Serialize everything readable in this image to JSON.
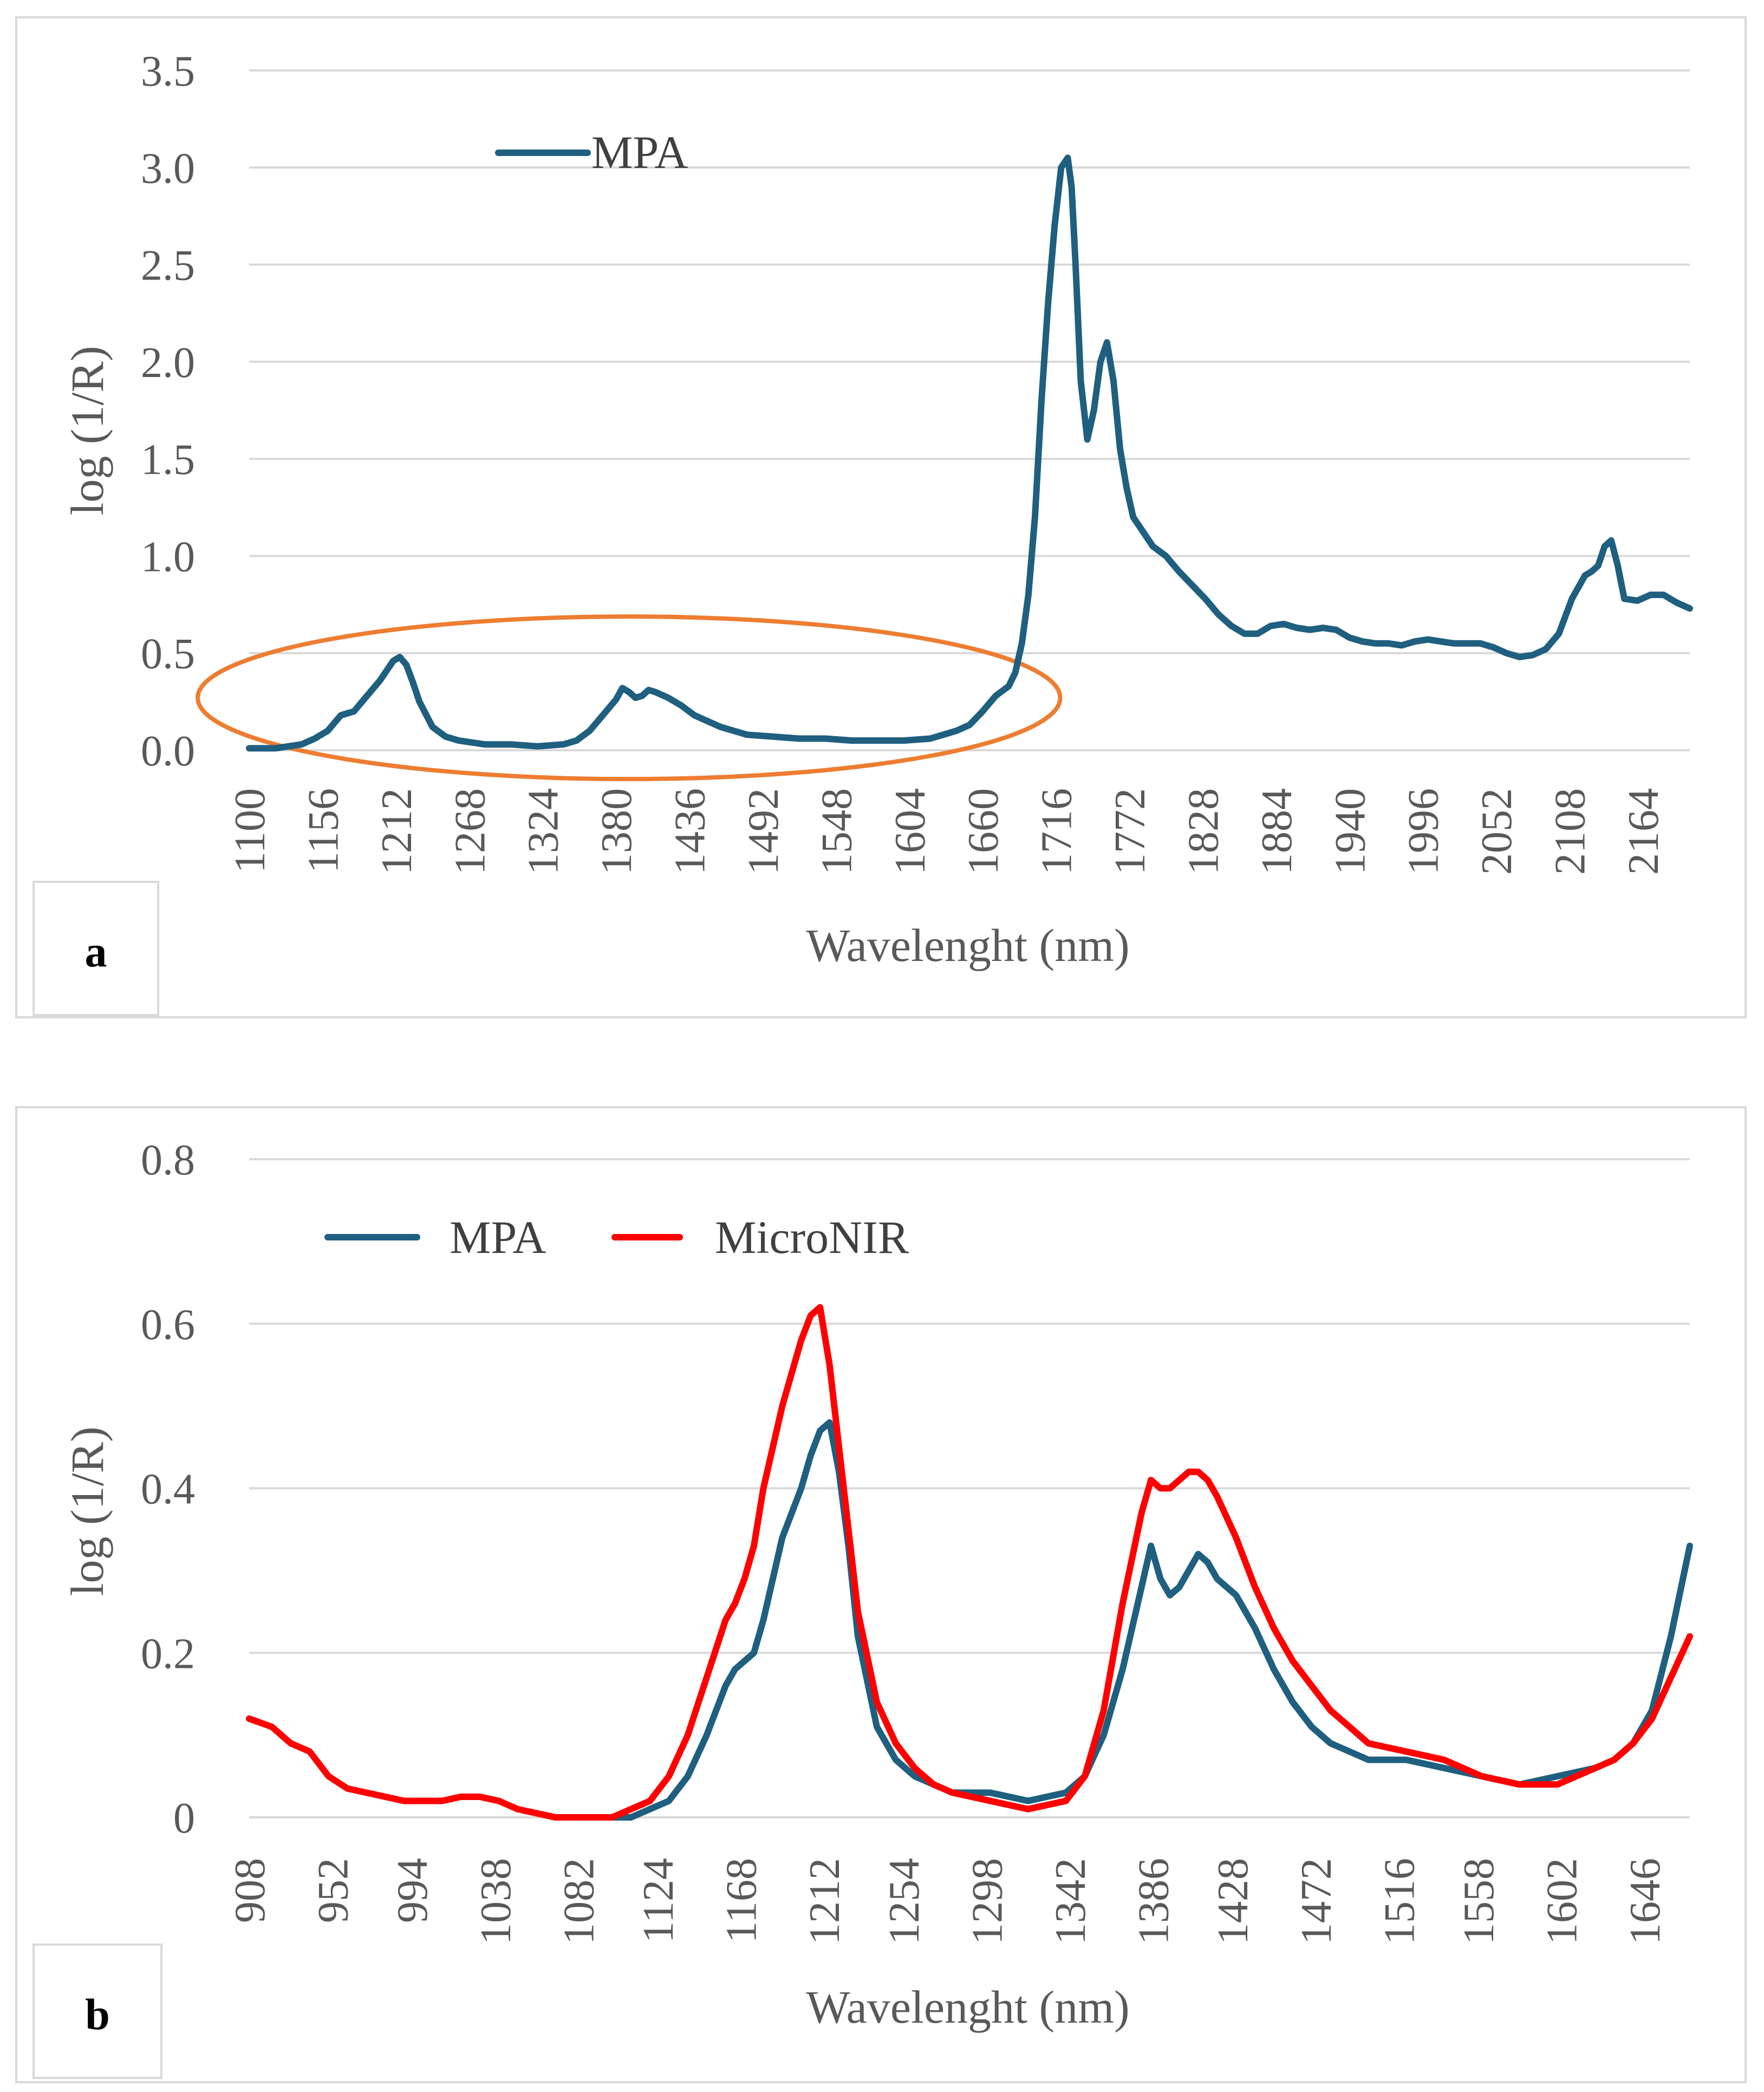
{
  "chart_data": [
    {
      "type": "line",
      "panel_label": "a",
      "xlabel": "Wavelenght (nm)",
      "ylabel": "log (1/R)",
      "xlim": [
        1100,
        2200
      ],
      "ylim": [
        0,
        3.5
      ],
      "x_ticks": [
        1100,
        1156,
        1212,
        1268,
        1324,
        1380,
        1436,
        1492,
        1548,
        1604,
        1660,
        1716,
        1772,
        1828,
        1884,
        1940,
        1996,
        2052,
        2108,
        2164
      ],
      "y_ticks": [
        "0.0",
        "0.5",
        "1.0",
        "1.5",
        "2.0",
        "2.5",
        "3.0",
        "3.5"
      ],
      "grid": true,
      "legend": "top-left",
      "annotation": "orange ellipse highlighting 1100–1680 nm region",
      "colors": {
        "MPA": "#1f5f7f",
        "ellipse": "#ed7d31",
        "grid": "#d9d9d9"
      },
      "series": [
        {
          "name": "MPA",
          "x": [
            1100,
            1110,
            1120,
            1130,
            1140,
            1150,
            1160,
            1165,
            1170,
            1180,
            1190,
            1200,
            1205,
            1210,
            1215,
            1220,
            1225,
            1230,
            1240,
            1250,
            1260,
            1280,
            1300,
            1320,
            1340,
            1350,
            1360,
            1370,
            1380,
            1385,
            1390,
            1395,
            1400,
            1405,
            1410,
            1420,
            1430,
            1440,
            1460,
            1480,
            1500,
            1520,
            1540,
            1560,
            1580,
            1600,
            1620,
            1640,
            1650,
            1660,
            1670,
            1680,
            1685,
            1690,
            1695,
            1700,
            1705,
            1710,
            1715,
            1720,
            1725,
            1728,
            1731,
            1735,
            1740,
            1745,
            1750,
            1755,
            1760,
            1765,
            1770,
            1775,
            1780,
            1785,
            1790,
            1800,
            1810,
            1820,
            1830,
            1840,
            1850,
            1860,
            1870,
            1880,
            1890,
            1900,
            1910,
            1920,
            1930,
            1940,
            1950,
            1960,
            1970,
            1980,
            1990,
            2000,
            2010,
            2020,
            2030,
            2040,
            2050,
            2060,
            2070,
            2080,
            2090,
            2100,
            2110,
            2120,
            2125,
            2130,
            2135,
            2140,
            2145,
            2150,
            2160,
            2170,
            2180,
            2190,
            2200
          ],
          "y": [
            0.01,
            0.01,
            0.01,
            0.02,
            0.03,
            0.06,
            0.1,
            0.14,
            0.18,
            0.2,
            0.28,
            0.36,
            0.41,
            0.46,
            0.48,
            0.44,
            0.35,
            0.25,
            0.12,
            0.07,
            0.05,
            0.03,
            0.03,
            0.02,
            0.03,
            0.05,
            0.1,
            0.18,
            0.26,
            0.32,
            0.3,
            0.27,
            0.28,
            0.31,
            0.3,
            0.27,
            0.23,
            0.18,
            0.12,
            0.08,
            0.07,
            0.06,
            0.06,
            0.05,
            0.05,
            0.05,
            0.06,
            0.1,
            0.13,
            0.2,
            0.28,
            0.33,
            0.4,
            0.55,
            0.8,
            1.2,
            1.8,
            2.3,
            2.7,
            3.0,
            3.05,
            2.9,
            2.5,
            1.9,
            1.6,
            1.75,
            2.0,
            2.1,
            1.9,
            1.55,
            1.35,
            1.2,
            1.15,
            1.1,
            1.05,
            1.0,
            0.92,
            0.85,
            0.78,
            0.7,
            0.64,
            0.6,
            0.6,
            0.64,
            0.65,
            0.63,
            0.62,
            0.63,
            0.62,
            0.58,
            0.56,
            0.55,
            0.55,
            0.54,
            0.56,
            0.57,
            0.56,
            0.55,
            0.55,
            0.55,
            0.53,
            0.5,
            0.48,
            0.49,
            0.52,
            0.6,
            0.78,
            0.9,
            0.92,
            0.95,
            1.05,
            1.08,
            0.95,
            0.78,
            0.77,
            0.8,
            0.8,
            0.76,
            0.73
          ]
        }
      ]
    },
    {
      "type": "line",
      "panel_label": "b",
      "xlabel": "Wavelenght (nm)",
      "ylabel": "log (1/R)",
      "xlim": [
        908,
        1670
      ],
      "ylim": [
        0,
        0.8
      ],
      "x_ticks": [
        908,
        952,
        994,
        1038,
        1082,
        1124,
        1168,
        1212,
        1254,
        1298,
        1342,
        1386,
        1428,
        1472,
        1516,
        1558,
        1602,
        1646
      ],
      "y_ticks": [
        "0",
        "0.2",
        "0.4",
        "0.6",
        "0.8"
      ],
      "grid": true,
      "legend": "top-left",
      "colors": {
        "MPA": "#1f5f7f",
        "MicroNIR": "#ff0000",
        "grid": "#d9d9d9"
      },
      "series": [
        {
          "name": "MPA",
          "x": [
            1095,
            1110,
            1120,
            1130,
            1140,
            1150,
            1160,
            1165,
            1170,
            1175,
            1180,
            1190,
            1200,
            1205,
            1210,
            1215,
            1220,
            1225,
            1230,
            1240,
            1250,
            1260,
            1270,
            1280,
            1300,
            1320,
            1340,
            1350,
            1360,
            1370,
            1380,
            1385,
            1390,
            1395,
            1400,
            1405,
            1410,
            1415,
            1420,
            1430,
            1440,
            1450,
            1460,
            1470,
            1480,
            1490,
            1500,
            1520,
            1540,
            1560,
            1580,
            1600,
            1620,
            1630,
            1640,
            1650,
            1660,
            1670
          ],
          "y": [
            0.0,
            0.0,
            0.01,
            0.02,
            0.05,
            0.1,
            0.16,
            0.18,
            0.19,
            0.2,
            0.24,
            0.34,
            0.4,
            0.44,
            0.47,
            0.48,
            0.42,
            0.33,
            0.22,
            0.11,
            0.07,
            0.05,
            0.04,
            0.03,
            0.03,
            0.02,
            0.03,
            0.05,
            0.1,
            0.18,
            0.28,
            0.33,
            0.29,
            0.27,
            0.28,
            0.3,
            0.32,
            0.31,
            0.29,
            0.27,
            0.23,
            0.18,
            0.14,
            0.11,
            0.09,
            0.08,
            0.07,
            0.07,
            0.06,
            0.05,
            0.04,
            0.05,
            0.06,
            0.07,
            0.09,
            0.13,
            0.22,
            0.33
          ]
        },
        {
          "name": "MicroNIR",
          "x": [
            908,
            920,
            930,
            940,
            950,
            960,
            970,
            980,
            990,
            1000,
            1010,
            1020,
            1030,
            1040,
            1050,
            1060,
            1070,
            1080,
            1090,
            1100,
            1110,
            1120,
            1130,
            1140,
            1150,
            1160,
            1165,
            1170,
            1175,
            1180,
            1190,
            1200,
            1205,
            1210,
            1215,
            1220,
            1225,
            1230,
            1240,
            1250,
            1260,
            1270,
            1280,
            1300,
            1320,
            1340,
            1350,
            1360,
            1370,
            1380,
            1385,
            1390,
            1395,
            1400,
            1405,
            1410,
            1415,
            1420,
            1430,
            1440,
            1450,
            1460,
            1470,
            1480,
            1490,
            1500,
            1520,
            1540,
            1560,
            1580,
            1600,
            1620,
            1630,
            1640,
            1650,
            1660,
            1670
          ],
          "y": [
            0.12,
            0.11,
            0.09,
            0.08,
            0.05,
            0.035,
            0.03,
            0.025,
            0.02,
            0.02,
            0.02,
            0.025,
            0.025,
            0.02,
            0.01,
            0.005,
            0.0,
            0.0,
            0.0,
            0.0,
            0.01,
            0.02,
            0.05,
            0.1,
            0.17,
            0.24,
            0.26,
            0.29,
            0.33,
            0.4,
            0.5,
            0.58,
            0.61,
            0.62,
            0.55,
            0.45,
            0.35,
            0.25,
            0.14,
            0.09,
            0.06,
            0.04,
            0.03,
            0.02,
            0.01,
            0.02,
            0.05,
            0.13,
            0.26,
            0.37,
            0.41,
            0.4,
            0.4,
            0.41,
            0.42,
            0.42,
            0.41,
            0.39,
            0.34,
            0.28,
            0.23,
            0.19,
            0.16,
            0.13,
            0.11,
            0.09,
            0.08,
            0.07,
            0.05,
            0.04,
            0.04,
            0.06,
            0.07,
            0.09,
            0.12,
            0.17,
            0.22
          ]
        }
      ]
    }
  ]
}
